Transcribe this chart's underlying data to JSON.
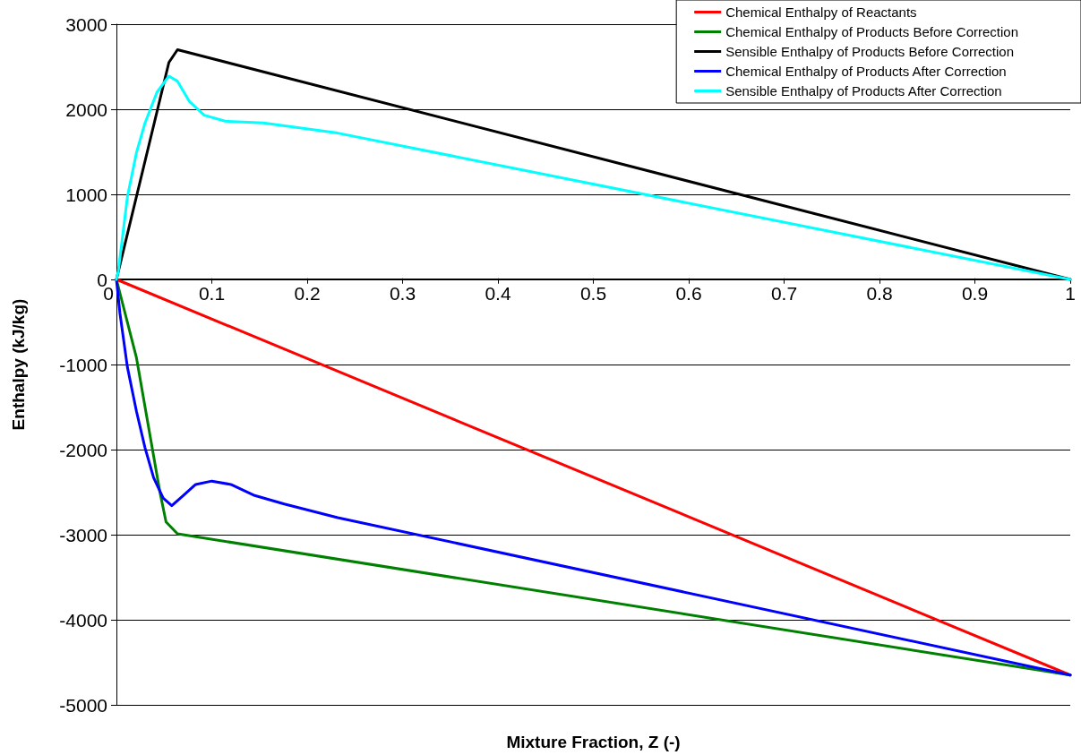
{
  "chart_data": {
    "type": "line",
    "xlabel": "Mixture Fraction, Z (-)",
    "ylabel": "Enthalpy (kJ/kg)",
    "xlim": [
      0,
      1
    ],
    "xticks": [
      0,
      0.1,
      0.2,
      0.3,
      0.4,
      0.5,
      0.6,
      0.7,
      0.8,
      0.9,
      1
    ],
    "ylim": [
      -5000,
      3000
    ],
    "yticks": [
      -5000,
      -4000,
      -3000,
      -2000,
      -1000,
      0,
      1000,
      2000,
      3000
    ],
    "grid": "y",
    "legend": "top right",
    "marker": "none",
    "line_style": "solid",
    "series": [
      {
        "name": "Chemical Enthalpy of Reactants",
        "color": "#ff0000",
        "x": [
          0,
          1
        ],
        "values": [
          0,
          -4650
        ]
      },
      {
        "name": "Chemical Enthalpy of Products Before Correction",
        "color": "#008000",
        "x": [
          0,
          0.021,
          0.0456,
          0.052,
          0.064,
          1
        ],
        "values": [
          0,
          -920,
          -2500,
          -2850,
          -2990,
          -4650
        ]
      },
      {
        "name": "Sensible Enthalpy of Products Before Correction",
        "color": "#000000",
        "x": [
          0,
          0.055,
          0.064,
          1
        ],
        "values": [
          0,
          2550,
          2700,
          0
        ]
      },
      {
        "name": "Chemical Enthalpy of Products After Correction",
        "color": "#0000ff",
        "x": [
          0,
          0.0037,
          0.0115,
          0.021,
          0.03,
          0.039,
          0.049,
          0.058,
          0.07,
          0.083,
          0.1,
          0.12,
          0.145,
          0.176,
          0.232,
          1
        ],
        "values": [
          0,
          -400,
          -1030,
          -1550,
          -1980,
          -2330,
          -2570,
          -2660,
          -2540,
          -2410,
          -2370,
          -2410,
          -2540,
          -2640,
          -2800,
          -4650
        ]
      },
      {
        "name": "Sensible Enthalpy of Products After Correction",
        "color": "#00ffff",
        "x": [
          0,
          0.002,
          0.0115,
          0.021,
          0.03,
          0.0425,
          0.055,
          0.064,
          0.0766,
          0.092,
          0.114,
          0.154,
          0.232,
          1
        ],
        "values": [
          0,
          100,
          970,
          1490,
          1840,
          2200,
          2390,
          2330,
          2090,
          1930,
          1860,
          1840,
          1720,
          0
        ]
      }
    ]
  }
}
